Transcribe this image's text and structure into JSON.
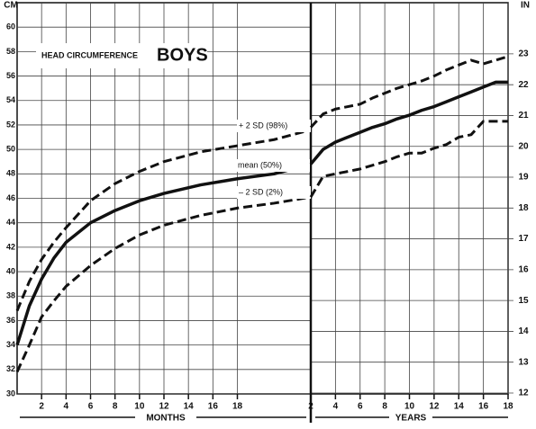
{
  "chart_data": [
    {
      "type": "line",
      "title": "HEAD CIRCUMFERENCE",
      "subtitle": "BOYS",
      "y_label": "CM",
      "x_label": "MONTHS",
      "x": [
        0,
        1,
        2,
        3,
        4,
        6,
        8,
        10,
        12,
        15,
        18,
        21,
        24
      ],
      "xlim": [
        0,
        24
      ],
      "xticks": [
        2,
        4,
        6,
        8,
        10,
        12,
        14,
        16,
        18
      ],
      "ylim": [
        30,
        62
      ],
      "yticks": [
        30,
        32,
        34,
        36,
        38,
        40,
        42,
        44,
        46,
        48,
        50,
        52,
        54,
        56,
        58,
        60
      ],
      "grid": true,
      "series": [
        {
          "name": "+ 2 SD (98%)",
          "color": "#111111",
          "dashed": true,
          "values": [
            36.8,
            39.2,
            41.0,
            42.4,
            43.6,
            45.8,
            47.2,
            48.2,
            49.0,
            49.8,
            50.3,
            50.8,
            51.6
          ]
        },
        {
          "name": "mean (50%)",
          "color": "#111111",
          "dashed": false,
          "values": [
            34.0,
            37.2,
            39.4,
            41.1,
            42.4,
            44.0,
            45.0,
            45.8,
            46.4,
            47.1,
            47.6,
            48.0,
            48.8
          ]
        },
        {
          "name": "– 2 SD (2%)",
          "color": "#111111",
          "dashed": true,
          "values": [
            31.8,
            34.0,
            36.3,
            37.6,
            38.8,
            40.5,
            41.9,
            43.0,
            43.8,
            44.6,
            45.2,
            45.6,
            46.1
          ]
        }
      ]
    },
    {
      "type": "line",
      "x_label": "YEARS",
      "y2_label": "IN",
      "x": [
        2,
        3,
        4,
        5,
        6,
        7,
        8,
        9,
        10,
        11,
        12,
        13,
        14,
        15,
        16,
        17,
        18
      ],
      "xlim": [
        2,
        18
      ],
      "xticks": [
        2,
        4,
        6,
        8,
        10,
        12,
        14,
        16,
        18
      ],
      "ylim": [
        30,
        62
      ],
      "y2lim": [
        11.97,
        24.66
      ],
      "y2ticks": [
        12,
        13,
        14,
        15,
        16,
        17,
        18,
        19,
        20,
        21,
        22,
        23
      ],
      "grid": true,
      "series": [
        {
          "color": "#111111",
          "dashed": true,
          "values": [
            51.8,
            52.9,
            53.3,
            53.5,
            53.7,
            54.2,
            54.6,
            55.0,
            55.3,
            55.6,
            56.0,
            56.5,
            56.9,
            57.3,
            57.0,
            57.3,
            57.6
          ]
        },
        {
          "color": "#111111",
          "dashed": false,
          "values": [
            48.8,
            50.0,
            50.6,
            51.0,
            51.4,
            51.8,
            52.1,
            52.5,
            52.8,
            53.2,
            53.5,
            53.9,
            54.3,
            54.7,
            55.1,
            55.5,
            55.5
          ]
        },
        {
          "color": "#111111",
          "dashed": true,
          "values": [
            46.1,
            47.8,
            48.0,
            48.2,
            48.4,
            48.7,
            49.0,
            49.4,
            49.7,
            49.7,
            50.1,
            50.4,
            51.0,
            51.2,
            52.3,
            52.3,
            52.3
          ]
        }
      ]
    }
  ]
}
